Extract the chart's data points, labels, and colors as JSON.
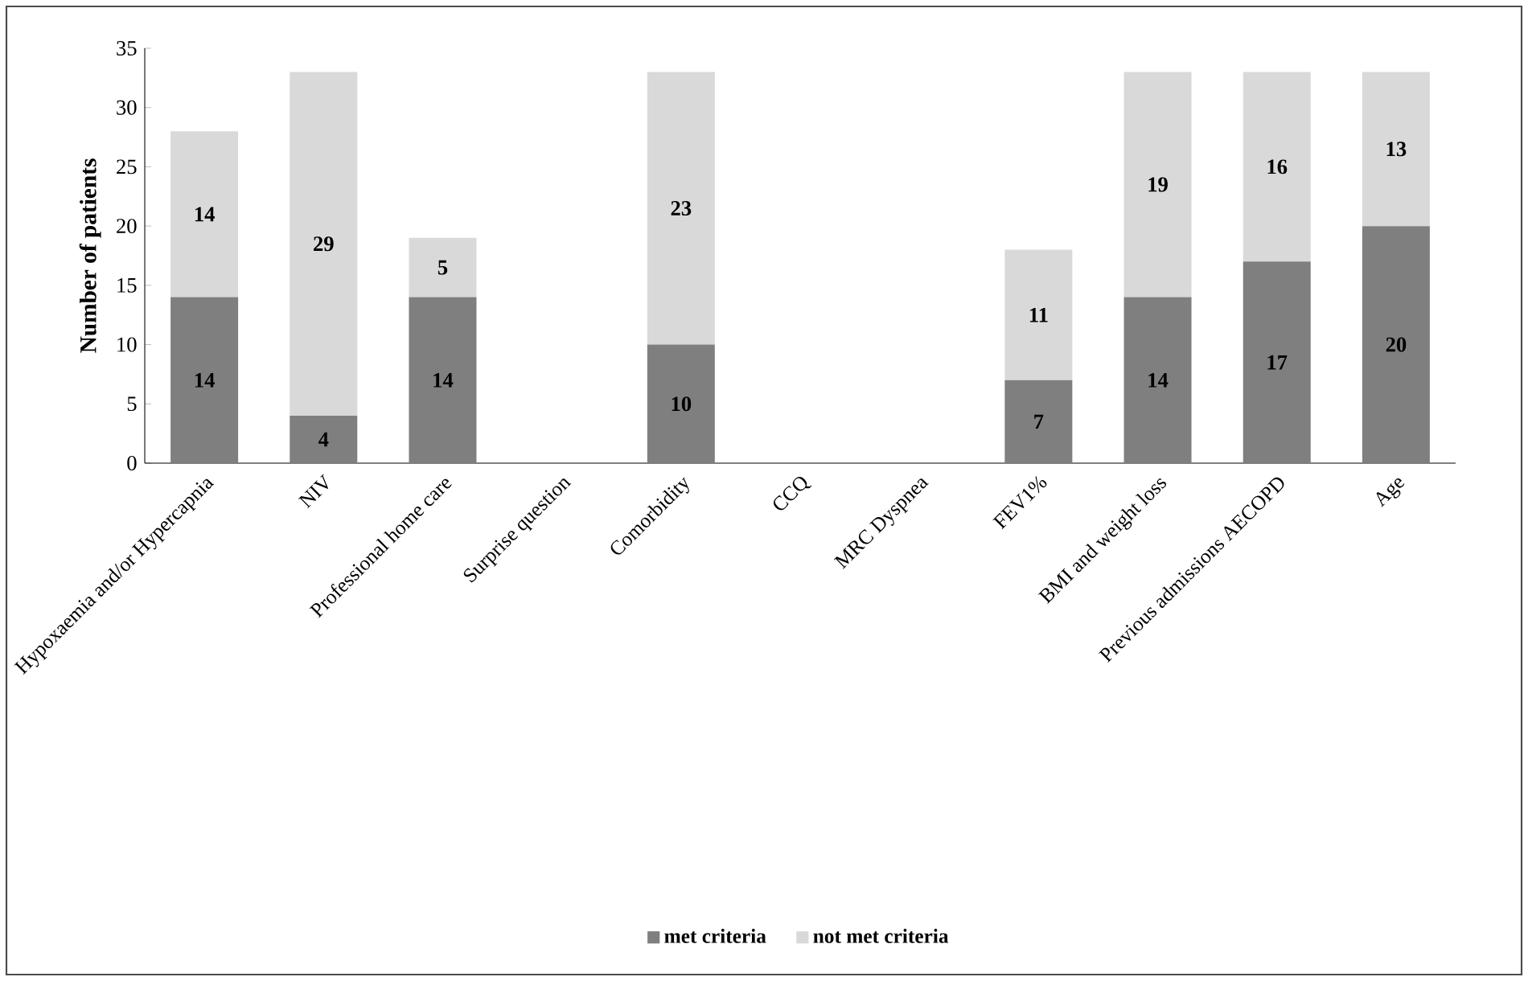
{
  "chart_data": {
    "type": "bar",
    "stacked": true,
    "ylabel": "Number of patients",
    "categories": [
      "Hypoxaemia and/or Hypercapnia",
      "NIV",
      "Professional home care",
      "Surprise question",
      "Comorbidity",
      "CCQ",
      "MRC Dyspnea",
      "FEV1%",
      "BMI and weight loss",
      "Previous admissions AECOPD",
      "Age"
    ],
    "series": [
      {
        "name": "met criteria",
        "color": "#7f7f7f",
        "values": [
          14,
          4,
          14,
          null,
          10,
          null,
          null,
          7,
          14,
          17,
          20
        ]
      },
      {
        "name": "not met criteria",
        "color": "#d9d9d9",
        "values": [
          14,
          29,
          5,
          null,
          23,
          null,
          null,
          11,
          19,
          16,
          13
        ]
      }
    ],
    "ylim": [
      0,
      35
    ],
    "yticks": [
      0,
      5,
      10,
      15,
      20,
      25,
      30,
      35
    ],
    "data_labels": true,
    "legend": "bottom",
    "grid": false
  }
}
